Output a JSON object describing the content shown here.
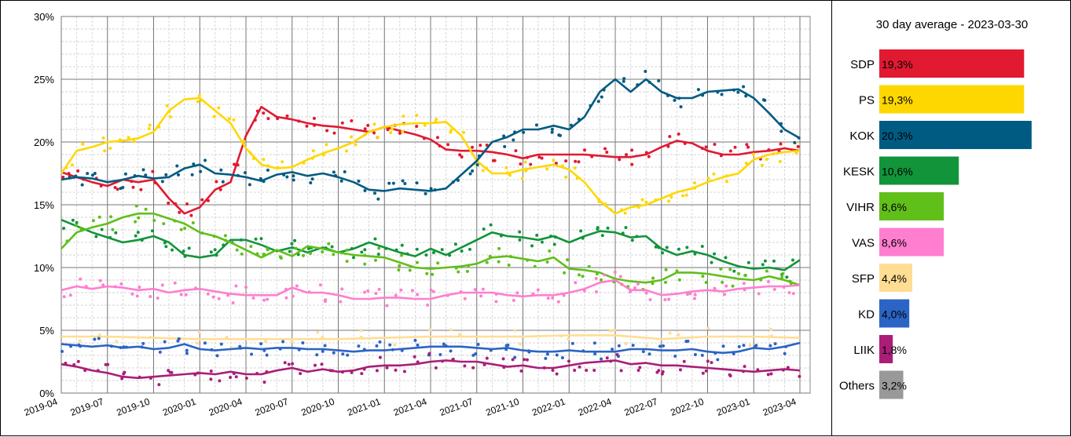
{
  "chart_data": [
    {
      "type": "line",
      "title": "",
      "xlabel": "",
      "ylabel": "",
      "ylim": [
        0,
        30
      ],
      "y_ticks": [
        "0%",
        "5%",
        "10%",
        "15%",
        "20%",
        "25%",
        "30%"
      ],
      "x_ticks": [
        "2019-04",
        "2019-07",
        "2019-10",
        "2020-01",
        "2020-04",
        "2020-07",
        "2020-10",
        "2021-01",
        "2021-04",
        "2021-07",
        "2021-10",
        "2022-01",
        "2022-04",
        "2022-07",
        "2022-10",
        "2023-01",
        "2023-04"
      ],
      "grid": true,
      "series": [
        {
          "color": "#E11931",
          "x": [
            "2019-04",
            "2019-05",
            "2019-06",
            "2019-07",
            "2019-08",
            "2019-09",
            "2019-10",
            "2019-11",
            "2019-12",
            "2020-01",
            "2020-02",
            "2020-03",
            "2020-04",
            "2020-05",
            "2020-06",
            "2020-07",
            "2020-08",
            "2020-09",
            "2020-10",
            "2020-11",
            "2020-12",
            "2021-01",
            "2021-02",
            "2021-03",
            "2021-04",
            "2021-05",
            "2021-06",
            "2021-07",
            "2021-08",
            "2021-09",
            "2021-10",
            "2021-11",
            "2021-12",
            "2022-01",
            "2022-02",
            "2022-03",
            "2022-04",
            "2022-05",
            "2022-06",
            "2022-07",
            "2022-08",
            "2022-09",
            "2022-10",
            "2022-11",
            "2022-12",
            "2023-01",
            "2023-02",
            "2023-03",
            "2023-04"
          ],
          "values": [
            17.6,
            17.2,
            16.8,
            16.5,
            17.0,
            16.8,
            17.0,
            15.5,
            14.3,
            14.8,
            16.2,
            16.8,
            20.5,
            22.8,
            22.0,
            21.8,
            21.5,
            21.3,
            21.2,
            21.0,
            20.8,
            21.2,
            20.9,
            20.6,
            20.2,
            19.4,
            19.3,
            19.3,
            19.2,
            19.0,
            18.7,
            19.0,
            19.0,
            19.0,
            19.0,
            18.9,
            18.8,
            18.8,
            19.0,
            19.6,
            20.1,
            19.9,
            19.3,
            19.0,
            19.0,
            19.2,
            19.3,
            19.5,
            19.3
          ]
        },
        {
          "color": "#FFD700",
          "x": [
            "2019-04",
            "2019-05",
            "2019-06",
            "2019-07",
            "2019-08",
            "2019-09",
            "2019-10",
            "2019-11",
            "2019-12",
            "2020-01",
            "2020-02",
            "2020-03",
            "2020-04",
            "2020-05",
            "2020-06",
            "2020-07",
            "2020-08",
            "2020-09",
            "2020-10",
            "2020-11",
            "2020-12",
            "2021-01",
            "2021-02",
            "2021-03",
            "2021-04",
            "2021-05",
            "2021-06",
            "2021-07",
            "2021-08",
            "2021-09",
            "2021-10",
            "2021-11",
            "2021-12",
            "2022-01",
            "2022-02",
            "2022-03",
            "2022-04",
            "2022-05",
            "2022-06",
            "2022-07",
            "2022-08",
            "2022-09",
            "2022-10",
            "2022-11",
            "2022-12",
            "2023-01",
            "2023-02",
            "2023-03",
            "2023-04"
          ],
          "values": [
            17.5,
            19.3,
            19.6,
            20.0,
            20.1,
            20.3,
            20.8,
            22.5,
            23.4,
            23.5,
            22.5,
            21.5,
            19.5,
            18.2,
            17.9,
            18.0,
            18.6,
            19.1,
            19.5,
            20.0,
            20.8,
            21.2,
            21.4,
            21.5,
            21.5,
            21.6,
            20.5,
            18.5,
            17.5,
            17.5,
            17.8,
            18.0,
            18.2,
            17.8,
            16.8,
            15.3,
            14.3,
            14.8,
            15.0,
            15.5,
            16.0,
            16.3,
            16.8,
            17.2,
            17.5,
            18.6,
            19.0,
            19.2,
            19.3
          ]
        },
        {
          "color": "#005B82",
          "x": [
            "2019-04",
            "2019-05",
            "2019-06",
            "2019-07",
            "2019-08",
            "2019-09",
            "2019-10",
            "2019-11",
            "2019-12",
            "2020-01",
            "2020-02",
            "2020-03",
            "2020-04",
            "2020-05",
            "2020-06",
            "2020-07",
            "2020-08",
            "2020-09",
            "2020-10",
            "2020-11",
            "2020-12",
            "2021-01",
            "2021-02",
            "2021-03",
            "2021-04",
            "2021-05",
            "2021-06",
            "2021-07",
            "2021-08",
            "2021-09",
            "2021-10",
            "2021-11",
            "2021-12",
            "2022-01",
            "2022-02",
            "2022-03",
            "2022-04",
            "2022-05",
            "2022-06",
            "2022-07",
            "2022-08",
            "2022-09",
            "2022-10",
            "2022-11",
            "2022-12",
            "2023-01",
            "2023-02",
            "2023-03",
            "2023-04"
          ],
          "values": [
            17.0,
            17.2,
            17.1,
            16.8,
            17.0,
            17.3,
            17.1,
            17.2,
            17.9,
            18.2,
            17.5,
            17.4,
            17.2,
            16.9,
            17.4,
            17.6,
            17.3,
            17.5,
            17.2,
            16.8,
            16.2,
            16.1,
            16.3,
            16.2,
            16.1,
            16.3,
            17.4,
            18.5,
            20.0,
            20.4,
            21.0,
            21.0,
            21.3,
            21.0,
            22.0,
            24.0,
            25.0,
            24.0,
            25.0,
            24.0,
            23.5,
            23.5,
            24.0,
            24.1,
            24.2,
            23.5,
            22.3,
            21.0,
            20.3
          ]
        },
        {
          "color": "#12943B",
          "x": [
            "2019-04",
            "2019-05",
            "2019-06",
            "2019-07",
            "2019-08",
            "2019-09",
            "2019-10",
            "2019-11",
            "2019-12",
            "2020-01",
            "2020-02",
            "2020-03",
            "2020-04",
            "2020-05",
            "2020-06",
            "2020-07",
            "2020-08",
            "2020-09",
            "2020-10",
            "2020-11",
            "2020-12",
            "2021-01",
            "2021-02",
            "2021-03",
            "2021-04",
            "2021-05",
            "2021-06",
            "2021-07",
            "2021-08",
            "2021-09",
            "2021-10",
            "2021-11",
            "2021-12",
            "2022-01",
            "2022-02",
            "2022-03",
            "2022-04",
            "2022-05",
            "2022-06",
            "2022-07",
            "2022-08",
            "2022-09",
            "2022-10",
            "2022-11",
            "2022-12",
            "2023-01",
            "2023-02",
            "2023-03",
            "2023-04"
          ],
          "values": [
            13.8,
            13.3,
            12.8,
            12.4,
            12.0,
            12.2,
            12.5,
            12.0,
            11.0,
            10.8,
            11.0,
            12.2,
            12.2,
            11.8,
            11.3,
            11.6,
            11.2,
            11.6,
            11.2,
            11.5,
            12.0,
            11.6,
            11.2,
            10.9,
            11.5,
            11.0,
            11.6,
            12.2,
            12.8,
            12.5,
            12.4,
            12.2,
            12.5,
            12.0,
            12.5,
            12.9,
            12.8,
            12.4,
            12.5,
            11.5,
            11.0,
            11.3,
            11.0,
            10.5,
            10.1,
            9.9,
            10.0,
            9.8,
            10.6
          ]
        },
        {
          "color": "#61BF1A",
          "x": [
            "2019-04",
            "2019-05",
            "2019-06",
            "2019-07",
            "2019-08",
            "2019-09",
            "2019-10",
            "2019-11",
            "2019-12",
            "2020-01",
            "2020-02",
            "2020-03",
            "2020-04",
            "2020-05",
            "2020-06",
            "2020-07",
            "2020-08",
            "2020-09",
            "2020-10",
            "2020-11",
            "2020-12",
            "2021-01",
            "2021-02",
            "2021-03",
            "2021-04",
            "2021-05",
            "2021-06",
            "2021-07",
            "2021-08",
            "2021-09",
            "2021-10",
            "2021-11",
            "2021-12",
            "2022-01",
            "2022-02",
            "2022-03",
            "2022-04",
            "2022-05",
            "2022-06",
            "2022-07",
            "2022-08",
            "2022-09",
            "2022-10",
            "2022-11",
            "2022-12",
            "2023-01",
            "2023-02",
            "2023-03",
            "2023-04"
          ],
          "values": [
            11.5,
            12.8,
            13.2,
            13.5,
            14.0,
            14.3,
            14.3,
            13.9,
            13.5,
            12.8,
            12.5,
            12.0,
            11.4,
            10.8,
            11.4,
            10.9,
            11.7,
            11.5,
            11.2,
            11.0,
            10.9,
            10.8,
            10.4,
            10.0,
            9.9,
            10.0,
            10.1,
            10.3,
            10.8,
            10.9,
            10.7,
            10.5,
            10.8,
            9.9,
            9.8,
            9.6,
            9.1,
            8.9,
            8.8,
            9.0,
            9.6,
            9.6,
            9.5,
            9.3,
            9.1,
            9.0,
            9.3,
            9.0,
            8.6
          ]
        },
        {
          "color": "#FF7ECF",
          "x": [
            "2019-04",
            "2019-05",
            "2019-06",
            "2019-07",
            "2019-08",
            "2019-09",
            "2019-10",
            "2019-11",
            "2019-12",
            "2020-01",
            "2020-02",
            "2020-03",
            "2020-04",
            "2020-05",
            "2020-06",
            "2020-07",
            "2020-08",
            "2020-09",
            "2020-10",
            "2020-11",
            "2020-12",
            "2021-01",
            "2021-02",
            "2021-03",
            "2021-04",
            "2021-05",
            "2021-06",
            "2021-07",
            "2021-08",
            "2021-09",
            "2021-10",
            "2021-11",
            "2021-12",
            "2022-01",
            "2022-02",
            "2022-03",
            "2022-04",
            "2022-05",
            "2022-06",
            "2022-07",
            "2022-08",
            "2022-09",
            "2022-10",
            "2022-11",
            "2022-12",
            "2023-01",
            "2023-02",
            "2023-03",
            "2023-04"
          ],
          "values": [
            8.2,
            8.5,
            8.3,
            8.5,
            8.4,
            8.2,
            8.3,
            8.0,
            8.2,
            8.3,
            8.1,
            7.9,
            7.8,
            7.8,
            7.8,
            8.4,
            8.0,
            8.0,
            7.8,
            7.5,
            7.5,
            7.6,
            7.6,
            7.5,
            7.5,
            7.8,
            8.0,
            8.0,
            8.0,
            7.8,
            7.7,
            7.8,
            7.8,
            8.0,
            8.3,
            8.8,
            9.0,
            8.2,
            8.2,
            7.8,
            7.9,
            8.1,
            8.2,
            8.1,
            8.3,
            8.4,
            8.5,
            8.5,
            8.6
          ]
        },
        {
          "color": "#FFDD93",
          "x": [
            "2019-04",
            "2019-07",
            "2019-10",
            "2020-01",
            "2020-04",
            "2020-07",
            "2020-10",
            "2021-01",
            "2021-04",
            "2021-07",
            "2021-10",
            "2022-01",
            "2022-04",
            "2022-07",
            "2022-10",
            "2023-01",
            "2023-04"
          ],
          "values": [
            4.5,
            4.5,
            4.4,
            4.3,
            4.3,
            4.3,
            4.3,
            4.4,
            4.5,
            4.5,
            4.5,
            4.6,
            4.6,
            4.3,
            4.5,
            4.5,
            4.4
          ]
        },
        {
          "color": "#2B64C5",
          "x": [
            "2019-04",
            "2019-05",
            "2019-06",
            "2019-07",
            "2019-08",
            "2019-09",
            "2019-10",
            "2019-11",
            "2019-12",
            "2020-01",
            "2020-02",
            "2020-03",
            "2020-04",
            "2020-05",
            "2020-06",
            "2020-07",
            "2020-08",
            "2020-09",
            "2020-10",
            "2020-11",
            "2020-12",
            "2021-01",
            "2021-02",
            "2021-03",
            "2021-04",
            "2021-05",
            "2021-06",
            "2021-07",
            "2021-08",
            "2021-09",
            "2021-10",
            "2021-11",
            "2021-12",
            "2022-01",
            "2022-02",
            "2022-03",
            "2022-04",
            "2022-05",
            "2022-06",
            "2022-07",
            "2022-08",
            "2022-09",
            "2022-10",
            "2022-11",
            "2022-12",
            "2023-01",
            "2023-02",
            "2023-03",
            "2023-04"
          ],
          "values": [
            3.9,
            3.8,
            3.7,
            3.8,
            3.6,
            3.7,
            3.5,
            3.6,
            3.9,
            3.5,
            3.4,
            3.5,
            3.6,
            3.5,
            3.6,
            3.6,
            3.5,
            3.5,
            3.4,
            3.3,
            3.4,
            3.4,
            3.5,
            3.6,
            3.7,
            3.7,
            3.7,
            3.6,
            3.5,
            3.6,
            3.4,
            3.3,
            3.3,
            3.4,
            3.3,
            3.3,
            3.3,
            3.5,
            3.5,
            3.4,
            3.4,
            3.5,
            3.3,
            3.2,
            3.3,
            3.6,
            3.5,
            3.7,
            4.0
          ]
        },
        {
          "color": "#AA1E78",
          "x": [
            "2019-04",
            "2019-05",
            "2019-06",
            "2019-07",
            "2019-08",
            "2019-09",
            "2019-10",
            "2019-11",
            "2019-12",
            "2020-01",
            "2020-02",
            "2020-03",
            "2020-04",
            "2020-05",
            "2020-06",
            "2020-07",
            "2020-08",
            "2020-09",
            "2020-10",
            "2020-11",
            "2020-12",
            "2021-01",
            "2021-02",
            "2021-03",
            "2021-04",
            "2021-05",
            "2021-06",
            "2021-07",
            "2021-08",
            "2021-09",
            "2021-10",
            "2021-11",
            "2021-12",
            "2022-01",
            "2022-02",
            "2022-03",
            "2022-04",
            "2022-05",
            "2022-06",
            "2022-07",
            "2022-08",
            "2022-09",
            "2022-10",
            "2022-11",
            "2022-12",
            "2023-01",
            "2023-02",
            "2023-03",
            "2023-04"
          ],
          "values": [
            2.3,
            2.1,
            1.8,
            1.6,
            1.3,
            1.2,
            1.3,
            1.4,
            1.5,
            1.6,
            1.5,
            1.7,
            1.5,
            1.5,
            1.8,
            2.0,
            1.7,
            1.9,
            1.7,
            1.8,
            2.1,
            2.2,
            2.2,
            2.3,
            2.5,
            2.6,
            2.5,
            2.5,
            2.3,
            2.1,
            2.2,
            2.0,
            2.0,
            2.2,
            2.4,
            2.5,
            2.6,
            2.3,
            2.4,
            2.2,
            2.2,
            2.1,
            2.0,
            1.9,
            1.8,
            1.7,
            1.8,
            1.9,
            1.8
          ]
        }
      ]
    },
    {
      "type": "bar",
      "title": "30 day average - 2023-03-30",
      "categories": [
        "SDP",
        "PS",
        "KOK",
        "KESK",
        "VIHR",
        "VAS",
        "SFP",
        "KD",
        "LIIK",
        "Others"
      ],
      "values": [
        19.3,
        19.3,
        20.3,
        10.6,
        8.6,
        8.6,
        4.4,
        4.0,
        1.8,
        3.2
      ],
      "labels": [
        "19,3%",
        "19,3%",
        "20,3%",
        "10,6%",
        "8,6%",
        "8,6%",
        "4,4%",
        "4,0%",
        "1,8%",
        "3,2%"
      ],
      "colors": [
        "#E11931",
        "#FFD700",
        "#005B82",
        "#12943B",
        "#61BF1A",
        "#FF7ECF",
        "#FFDD93",
        "#2B64C5",
        "#AA1E78",
        "#999999"
      ]
    }
  ]
}
